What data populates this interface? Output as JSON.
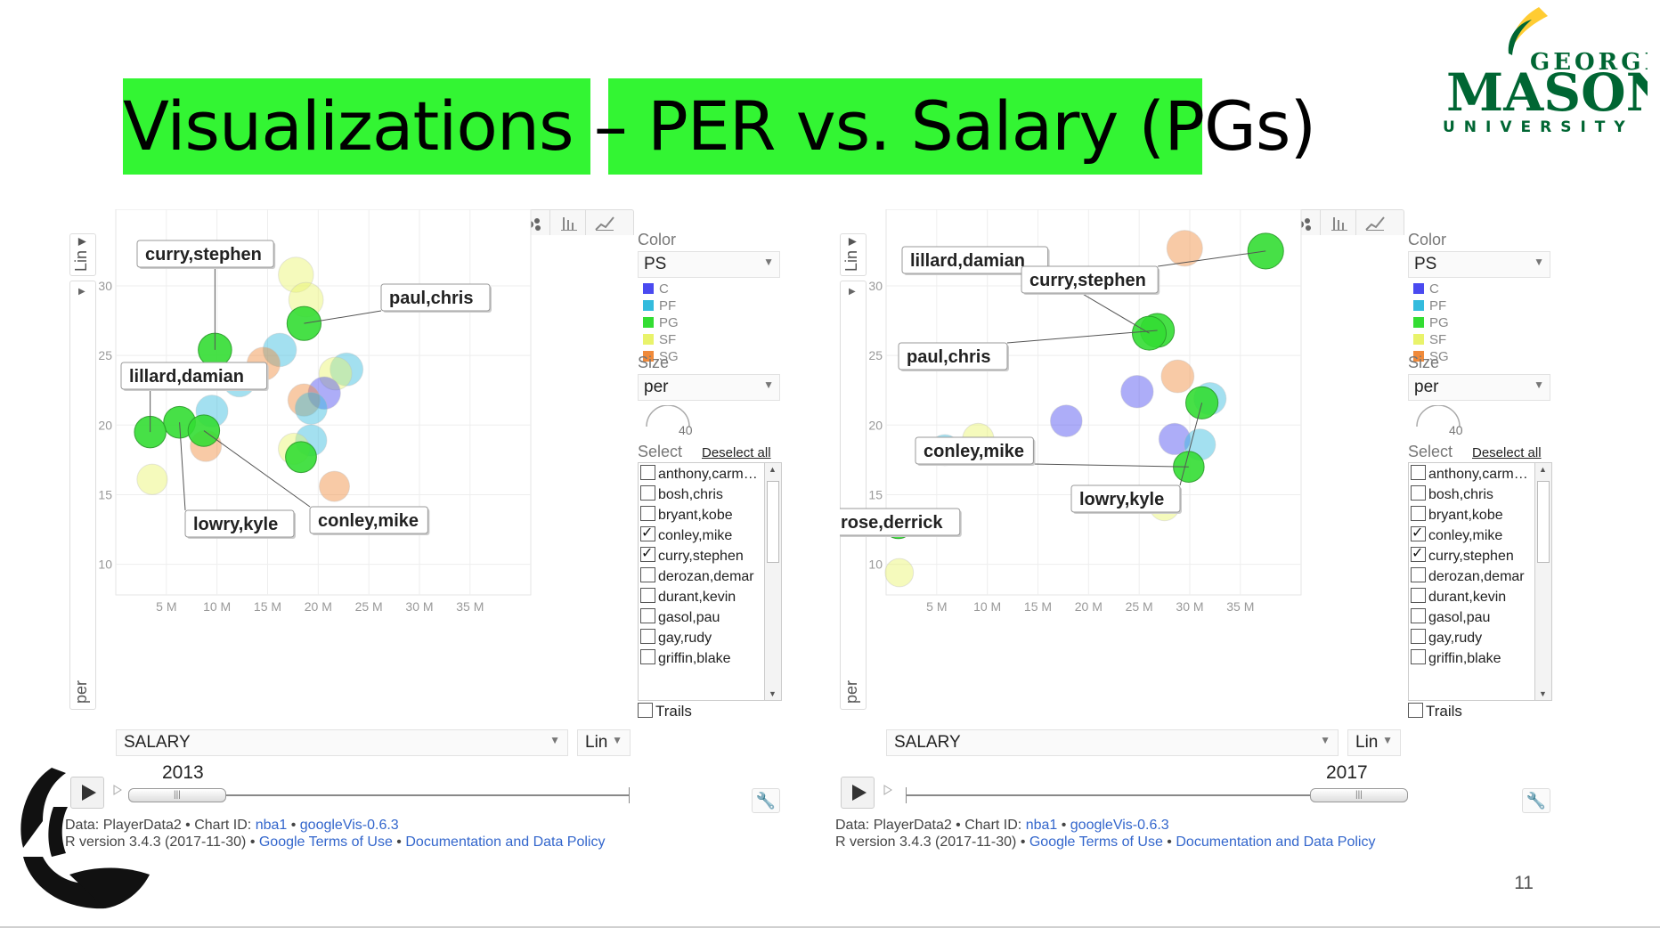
{
  "slide": {
    "title": "Visualizations – PER vs. Salary (PGs)",
    "page_number": "11",
    "logo_text_top": "GEORGE",
    "logo_text_mid": "MASON",
    "logo_text_bottom": "UNIVERSITY"
  },
  "colors": {
    "C": "#4a4af0",
    "PF": "#33bbdd",
    "PG": "#33dd33",
    "SF": "#e9f36b",
    "SG": "#f08a3a",
    "title_highlight": "#33f533",
    "gmu_green": "#006633",
    "gmu_gold": "#ffcc33"
  },
  "panels": [
    {
      "year": "2013",
      "color_label": "Color",
      "color_value": "PS",
      "legend": [
        "C",
        "PF",
        "PG",
        "SF",
        "SG"
      ],
      "size_label": "Size",
      "size_value": "per",
      "size_max": "40",
      "select_label": "Select",
      "deselect_label": "Deselect all",
      "list": [
        {
          "name": "anthony,carm…",
          "checked": false
        },
        {
          "name": "bosh,chris",
          "checked": false
        },
        {
          "name": "bryant,kobe",
          "checked": false
        },
        {
          "name": "conley,mike",
          "checked": true
        },
        {
          "name": "curry,stephen",
          "checked": true
        },
        {
          "name": "derozan,demar",
          "checked": false
        },
        {
          "name": "durant,kevin",
          "checked": false
        },
        {
          "name": "gasol,pau",
          "checked": false
        },
        {
          "name": "gay,rudy",
          "checked": false
        },
        {
          "name": "griffin,blake",
          "checked": false
        }
      ],
      "trails_label": "Trails",
      "x_dropdown": "SALARY",
      "x_scale": "Lin",
      "y_scale": "Lin",
      "y_dropdown": "per",
      "footer_line1_prefix": "Data: PlayerData2 • Chart ID: ",
      "footer_chart_id": "nba1",
      "footer_sep": " • ",
      "footer_googlevis": "googleVis-0.6.3",
      "footer_line2_prefix": "R version 3.4.3 (2017-11-30) • ",
      "footer_terms": "Google Terms of Use",
      "footer_docs": "Documentation and Data Policy",
      "slider_fraction": 0.0
    },
    {
      "year": "2017",
      "color_label": "Color",
      "color_value": "PS",
      "legend": [
        "C",
        "PF",
        "PG",
        "SF",
        "SG"
      ],
      "size_label": "Size",
      "size_value": "per",
      "size_max": "40",
      "select_label": "Select",
      "deselect_label": "Deselect all",
      "list": [
        {
          "name": "anthony,carm…",
          "checked": false
        },
        {
          "name": "bosh,chris",
          "checked": false
        },
        {
          "name": "bryant,kobe",
          "checked": false
        },
        {
          "name": "conley,mike",
          "checked": true
        },
        {
          "name": "curry,stephen",
          "checked": true
        },
        {
          "name": "derozan,demar",
          "checked": false
        },
        {
          "name": "durant,kevin",
          "checked": false
        },
        {
          "name": "gasol,pau",
          "checked": false
        },
        {
          "name": "gay,rudy",
          "checked": false
        },
        {
          "name": "griffin,blake",
          "checked": false
        }
      ],
      "trails_label": "Trails",
      "x_dropdown": "SALARY",
      "x_scale": "Lin",
      "y_scale": "Lin",
      "y_dropdown": "per",
      "footer_line1_prefix": "Data: PlayerData2 • Chart ID: ",
      "footer_chart_id": "nba1",
      "footer_sep": " • ",
      "footer_googlevis": "googleVis-0.6.3",
      "footer_line2_prefix": "R version 3.4.3 (2017-11-30) • ",
      "footer_terms": "Google Terms of Use",
      "footer_docs": "Documentation and Data Policy",
      "slider_fraction": 1.0
    }
  ],
  "chart_data": [
    {
      "type": "scatter",
      "title": "",
      "xlabel": "SALARY",
      "ylabel": "per",
      "x_ticks": [
        "5 M",
        "10 M",
        "15 M",
        "20 M",
        "25 M",
        "30 M",
        "35 M"
      ],
      "x_tick_values": [
        5,
        10,
        15,
        20,
        25,
        30,
        35
      ],
      "y_ticks": [
        "10",
        "15",
        "20",
        "25",
        "30"
      ],
      "y_tick_values": [
        10,
        15,
        20,
        25,
        30
      ],
      "xlim": [
        0,
        41
      ],
      "ylim": [
        7.8,
        35.5
      ],
      "grid": true,
      "points": [
        {
          "x": 17.8,
          "y": 30.8,
          "pos": "SF"
        },
        {
          "x": 18.8,
          "y": 29.0,
          "pos": "SF"
        },
        {
          "x": 18.6,
          "y": 27.3,
          "pos": "PG",
          "name": "paul,chris"
        },
        {
          "x": 9.8,
          "y": 25.4,
          "pos": "PG",
          "name": "curry,stephen"
        },
        {
          "x": 16.2,
          "y": 25.4,
          "pos": "PF"
        },
        {
          "x": 14.6,
          "y": 24.4,
          "pos": "SG"
        },
        {
          "x": 22.8,
          "y": 24.0,
          "pos": "PF"
        },
        {
          "x": 21.7,
          "y": 23.7,
          "pos": "SF"
        },
        {
          "x": 12.2,
          "y": 23.2,
          "pos": "PF"
        },
        {
          "x": 20.6,
          "y": 22.3,
          "pos": "C"
        },
        {
          "x": 18.6,
          "y": 21.8,
          "pos": "SG"
        },
        {
          "x": 9.5,
          "y": 21.0,
          "pos": "PF"
        },
        {
          "x": 19.3,
          "y": 21.2,
          "pos": "PF"
        },
        {
          "x": 6.3,
          "y": 20.2,
          "pos": "PG",
          "name": "lowry,kyle"
        },
        {
          "x": 3.4,
          "y": 19.5,
          "pos": "PG",
          "name": "lillard,damian"
        },
        {
          "x": 8.7,
          "y": 19.6,
          "pos": "PG",
          "name": "conley,mike"
        },
        {
          "x": 8.9,
          "y": 18.5,
          "pos": "SG"
        },
        {
          "x": 19.3,
          "y": 18.9,
          "pos": "PF"
        },
        {
          "x": 17.6,
          "y": 18.3,
          "pos": "SF"
        },
        {
          "x": 18.3,
          "y": 17.7,
          "pos": "PG"
        },
        {
          "x": 3.6,
          "y": 16.1,
          "pos": "SF"
        },
        {
          "x": 21.6,
          "y": 15.6,
          "pos": "SG"
        }
      ]
    },
    {
      "type": "scatter",
      "title": "",
      "xlabel": "SALARY",
      "ylabel": "per",
      "x_ticks": [
        "5 M",
        "10 M",
        "15 M",
        "20 M",
        "25 M",
        "30 M",
        "35 M"
      ],
      "x_tick_values": [
        5,
        10,
        15,
        20,
        25,
        30,
        35
      ],
      "y_ticks": [
        "10",
        "15",
        "20",
        "25",
        "30"
      ],
      "y_tick_values": [
        10,
        15,
        20,
        25,
        30
      ],
      "xlim": [
        0,
        41
      ],
      "ylim": [
        7.8,
        35.5
      ],
      "grid": true,
      "points": [
        {
          "x": 37.5,
          "y": 32.5,
          "pos": "PG",
          "name": "curry,stephen"
        },
        {
          "x": 29.5,
          "y": 32.7,
          "pos": "SG"
        },
        {
          "x": 26.8,
          "y": 26.8,
          "pos": "PG",
          "name": "paul,chris"
        },
        {
          "x": 26.0,
          "y": 26.6,
          "pos": "PG",
          "name": "lillard,damian"
        },
        {
          "x": 28.8,
          "y": 23.5,
          "pos": "SG"
        },
        {
          "x": 24.8,
          "y": 22.4,
          "pos": "C"
        },
        {
          "x": 32.0,
          "y": 21.9,
          "pos": "PF"
        },
        {
          "x": 31.2,
          "y": 21.6,
          "pos": "PG",
          "name": "lowry,kyle"
        },
        {
          "x": 17.8,
          "y": 20.3,
          "pos": "C"
        },
        {
          "x": 9.1,
          "y": 19.0,
          "pos": "SF"
        },
        {
          "x": 28.5,
          "y": 19.0,
          "pos": "C"
        },
        {
          "x": 5.8,
          "y": 18.2,
          "pos": "PF"
        },
        {
          "x": 31.0,
          "y": 18.6,
          "pos": "PF"
        },
        {
          "x": 29.9,
          "y": 17.0,
          "pos": "PG",
          "name": "conley,mike"
        },
        {
          "x": 27.5,
          "y": 14.2,
          "pos": "SF"
        },
        {
          "x": 1.2,
          "y": 12.9,
          "pos": "PG",
          "name": "rose,derrick"
        },
        {
          "x": 1.3,
          "y": 9.4,
          "pos": "SF"
        }
      ]
    }
  ],
  "callouts": [
    [
      {
        "text": "curry,stephen",
        "pt": 3
      },
      {
        "text": "paul,chris",
        "pt": 2
      },
      {
        "text": "lillard,damian",
        "pt": 14
      },
      {
        "text": "lowry,kyle",
        "pt": 13
      },
      {
        "text": "conley,mike",
        "pt": 15
      }
    ],
    [
      {
        "text": "lillard,damian",
        "pt": 3
      },
      {
        "text": "curry,stephen",
        "pt": 0
      },
      {
        "text": "paul,chris",
        "pt": 2
      },
      {
        "text": "conley,mike",
        "pt": 13
      },
      {
        "text": "lowry,kyle",
        "pt": 7
      },
      {
        "text": "rose,derrick",
        "pt": 15
      }
    ]
  ]
}
